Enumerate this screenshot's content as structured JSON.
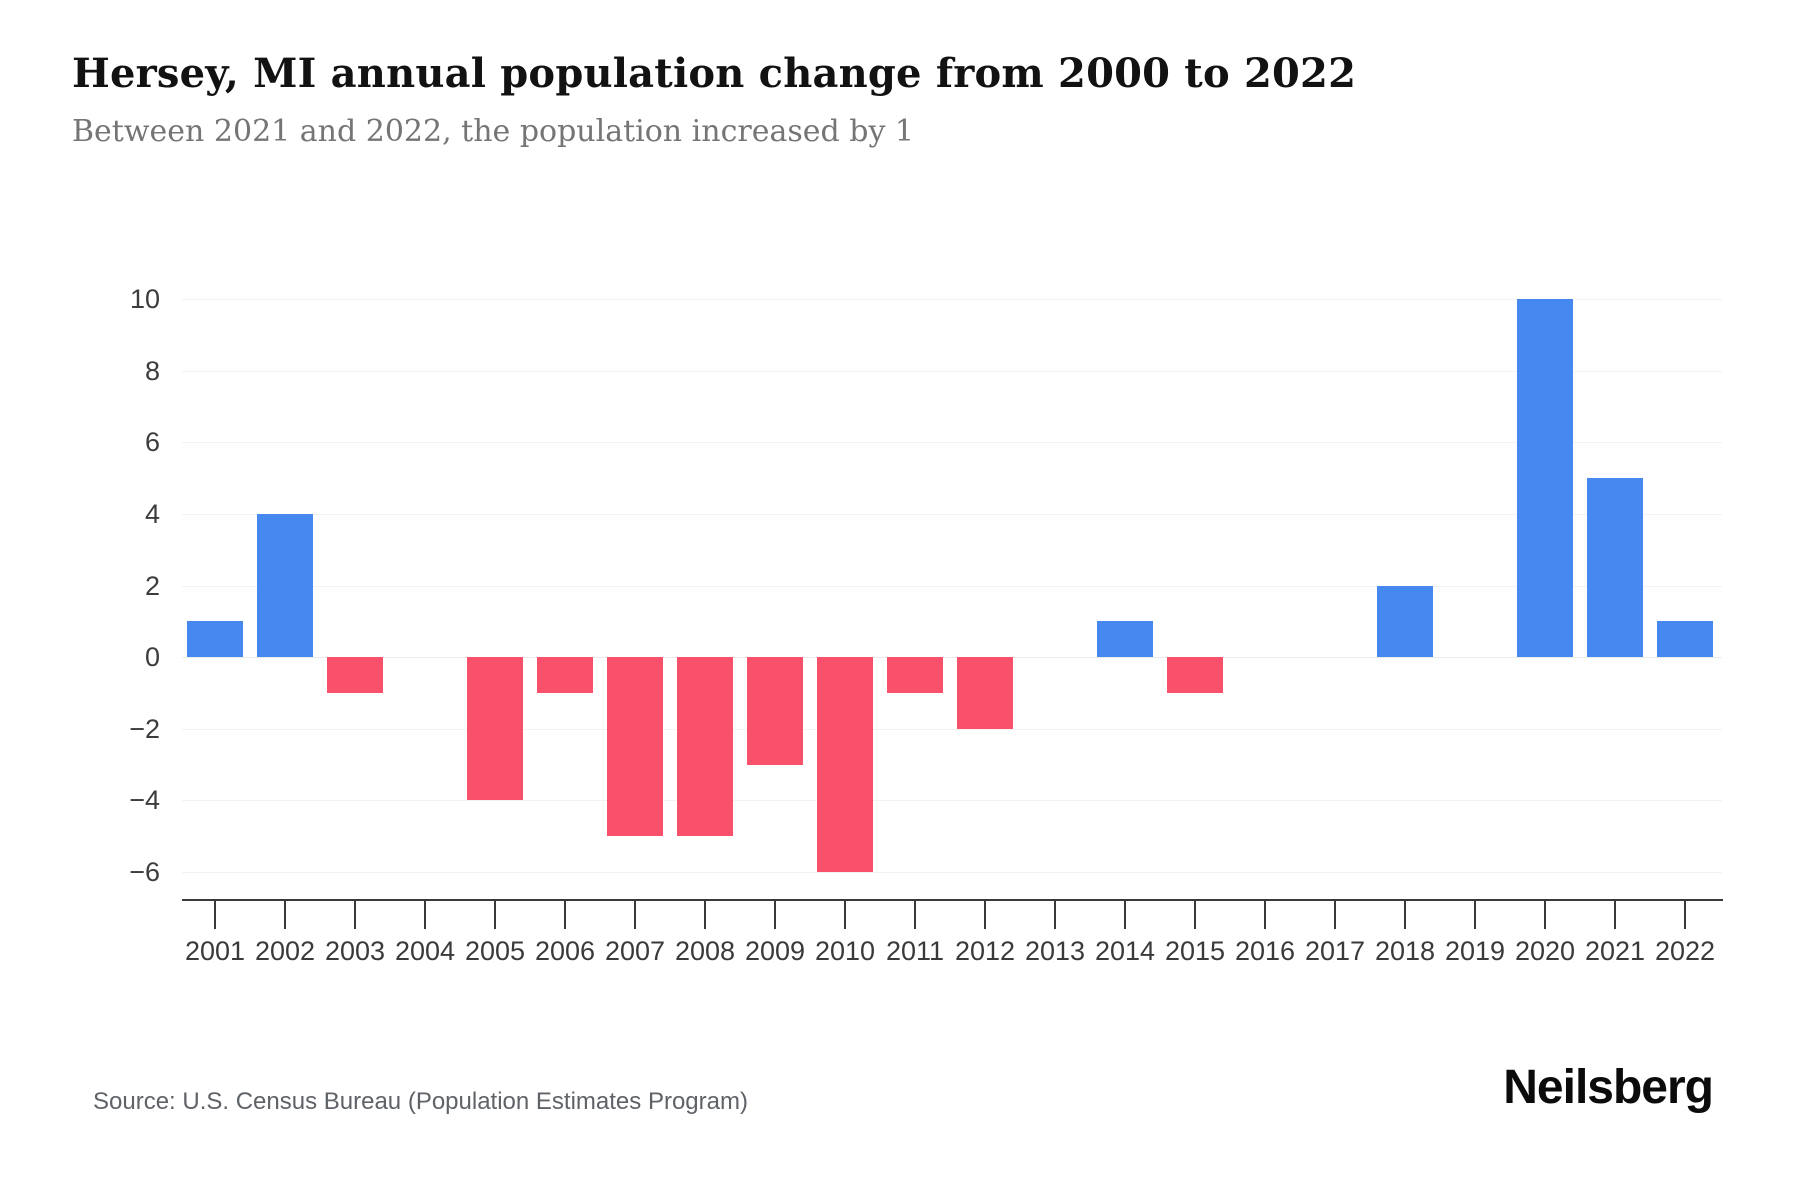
{
  "title": "Hersey, MI annual population change from 2000 to 2022",
  "subtitle": "Between 2021 and 2022, the population increased by 1",
  "source": "Source: U.S. Census Bureau (Population Estimates Program)",
  "logo": "Neilsberg",
  "chart_data": {
    "type": "bar",
    "title": "Hersey, MI annual population change from 2000 to 2022",
    "xlabel": "",
    "ylabel": "",
    "categories": [
      "2001",
      "2002",
      "2003",
      "2004",
      "2005",
      "2006",
      "2007",
      "2008",
      "2009",
      "2010",
      "2011",
      "2012",
      "2013",
      "2014",
      "2015",
      "2016",
      "2017",
      "2018",
      "2019",
      "2020",
      "2021",
      "2022"
    ],
    "values": [
      1,
      4,
      -1,
      0,
      -4,
      -1,
      -5,
      -5,
      -3,
      -6,
      -1,
      -2,
      0,
      1,
      -1,
      0,
      0,
      2,
      0,
      10,
      5,
      1
    ],
    "ylim": [
      -6,
      10
    ],
    "y_ticks": [
      10,
      8,
      6,
      4,
      2,
      0,
      -2,
      -4,
      -6
    ],
    "y_tick_labels": [
      "10",
      "8",
      "6",
      "4",
      "2",
      "0",
      "−2",
      "−4",
      "−6"
    ],
    "grid": "horizontal",
    "legend": "none",
    "positive_color": "#4687f0",
    "negative_color": "#f9516c"
  }
}
